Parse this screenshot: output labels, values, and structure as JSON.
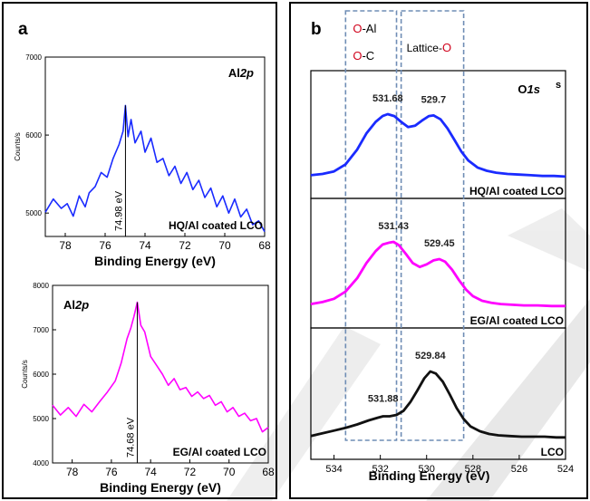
{
  "figure": {
    "panel_a_label": "a",
    "panel_b_label": "b"
  },
  "chart_data": [
    {
      "id": "a_top",
      "type": "line",
      "title": "Al2p",
      "title_parts": [
        "Al",
        "2p"
      ],
      "xlabel": "Binding Energy (eV)",
      "ylabel": "Counts/s",
      "xlim": [
        79,
        68
      ],
      "ylim": [
        4700,
        7000
      ],
      "xticks": [
        78,
        76,
        74,
        72,
        70,
        68
      ],
      "yticks": [
        5000,
        6000,
        7000
      ],
      "color": "#1a2bff",
      "peak_label": "74.98 eV",
      "peak_x": 74.98,
      "sample_label": "HQ/Al coated LCO",
      "series": [
        {
          "name": "HQ/Al coated LCO",
          "x": [
            79.0,
            78.6,
            78.2,
            77.9,
            77.6,
            77.3,
            77.0,
            76.8,
            76.5,
            76.2,
            75.9,
            75.6,
            75.3,
            75.1,
            74.98,
            74.85,
            74.7,
            74.5,
            74.2,
            74.0,
            73.7,
            73.4,
            73.1,
            72.8,
            72.5,
            72.2,
            71.9,
            71.6,
            71.3,
            71.0,
            70.7,
            70.4,
            70.1,
            69.8,
            69.5,
            69.2,
            68.9,
            68.6,
            68.3,
            68.0
          ],
          "values": [
            5010,
            5180,
            5060,
            5120,
            4960,
            5220,
            5080,
            5260,
            5340,
            5520,
            5460,
            5700,
            5880,
            6050,
            6380,
            5980,
            6200,
            5900,
            6050,
            5780,
            5960,
            5650,
            5700,
            5480,
            5600,
            5380,
            5520,
            5300,
            5420,
            5200,
            5320,
            5080,
            5220,
            5000,
            5180,
            4950,
            5050,
            4850,
            4900,
            4760
          ]
        }
      ]
    },
    {
      "id": "a_bottom",
      "type": "line",
      "title": "Al2p",
      "title_parts": [
        "Al",
        "2p"
      ],
      "xlabel": "Binding Energy (eV)",
      "ylabel": "Counts/s",
      "xlim": [
        79,
        68
      ],
      "ylim": [
        4000,
        8000
      ],
      "xticks": [
        78,
        76,
        74,
        72,
        70,
        68
      ],
      "yticks": [
        4000,
        5000,
        6000,
        7000,
        8000
      ],
      "color": "#ff00ff",
      "peak_label": "74.68 eV",
      "peak_x": 74.68,
      "sample_label": "EG/Al coated LCO",
      "series": [
        {
          "name": "EG/Al coated LCO",
          "x": [
            79.0,
            78.6,
            78.2,
            77.8,
            77.4,
            77.0,
            76.6,
            76.2,
            75.8,
            75.5,
            75.2,
            75.0,
            74.85,
            74.68,
            74.5,
            74.3,
            74.0,
            73.7,
            73.4,
            73.1,
            72.8,
            72.5,
            72.2,
            71.9,
            71.6,
            71.3,
            71.0,
            70.7,
            70.4,
            70.1,
            69.8,
            69.5,
            69.2,
            68.9,
            68.6,
            68.3,
            68.0
          ],
          "values": [
            5300,
            5080,
            5250,
            5050,
            5320,
            5150,
            5380,
            5600,
            5850,
            6250,
            6800,
            7050,
            7300,
            7620,
            7100,
            6950,
            6400,
            6200,
            6000,
            5750,
            5900,
            5650,
            5700,
            5500,
            5600,
            5450,
            5520,
            5300,
            5380,
            5150,
            5250,
            5050,
            5120,
            4950,
            5000,
            4700,
            4800
          ]
        }
      ]
    },
    {
      "id": "b",
      "type": "line",
      "title": "O1s",
      "title_parts": [
        "O",
        "1s"
      ],
      "corner_letter": "s",
      "xlabel": "Binding Energy (eV)",
      "xlim": [
        535,
        524
      ],
      "xticks": [
        534,
        532,
        530,
        528,
        526,
        524
      ],
      "box_left": {
        "lines": [
          [
            "O",
            "-Al"
          ],
          [
            "O",
            "-C"
          ]
        ],
        "range": [
          533.5,
          531.3
        ]
      },
      "box_right": {
        "lines": [
          [
            "Lattice-",
            "O"
          ]
        ],
        "range": [
          531.1,
          528.4
        ]
      },
      "highlight_color": "#d0021b",
      "series": [
        {
          "name": "HQ/Al coated LCO",
          "color": "#1a2bff",
          "peak_labels": [
            {
              "text": "531.68",
              "x": 531.68
            },
            {
              "text": "529.7",
              "x": 529.7
            }
          ],
          "x": [
            535.0,
            534.5,
            534.0,
            533.5,
            533.0,
            532.6,
            532.2,
            531.9,
            531.68,
            531.4,
            531.1,
            530.8,
            530.5,
            530.2,
            529.9,
            529.7,
            529.4,
            529.1,
            528.8,
            528.5,
            528.2,
            527.8,
            527.4,
            527.0,
            526.5,
            526.0,
            525.5,
            525.0,
            524.5,
            524.0
          ],
          "values": [
            0.05,
            0.07,
            0.11,
            0.22,
            0.45,
            0.7,
            0.88,
            0.97,
            1.0,
            0.97,
            0.88,
            0.8,
            0.82,
            0.9,
            0.97,
            0.98,
            0.92,
            0.78,
            0.6,
            0.42,
            0.28,
            0.17,
            0.12,
            0.09,
            0.07,
            0.06,
            0.05,
            0.04,
            0.04,
            0.03
          ]
        },
        {
          "name": "EG/Al coated LCO",
          "color": "#ff00ff",
          "peak_labels": [
            {
              "text": "531.43",
              "x": 531.43
            },
            {
              "text": "529.45",
              "x": 529.45
            }
          ],
          "x": [
            535.0,
            534.5,
            534.0,
            533.5,
            533.0,
            532.6,
            532.2,
            531.9,
            531.6,
            531.43,
            531.2,
            530.9,
            530.6,
            530.3,
            530.0,
            529.7,
            529.45,
            529.2,
            528.9,
            528.6,
            528.3,
            528.0,
            527.6,
            527.2,
            526.8,
            526.3,
            525.8,
            525.2,
            524.6,
            524.0
          ],
          "values": [
            0.06,
            0.09,
            0.14,
            0.25,
            0.45,
            0.68,
            0.86,
            0.96,
            0.99,
            1.0,
            0.95,
            0.82,
            0.68,
            0.62,
            0.66,
            0.72,
            0.74,
            0.7,
            0.58,
            0.42,
            0.28,
            0.18,
            0.11,
            0.08,
            0.06,
            0.05,
            0.04,
            0.04,
            0.03,
            0.03
          ]
        },
        {
          "name": "LCO",
          "color": "#111111",
          "peak_labels": [
            {
              "text": "531.88",
              "x": 531.88
            },
            {
              "text": "529.84",
              "x": 529.84
            }
          ],
          "x": [
            535.0,
            534.5,
            534.0,
            533.5,
            533.0,
            532.5,
            532.1,
            531.88,
            531.6,
            531.3,
            531.0,
            530.7,
            530.4,
            530.1,
            529.84,
            529.6,
            529.3,
            529.0,
            528.7,
            528.4,
            528.1,
            527.7,
            527.3,
            526.9,
            526.4,
            525.9,
            525.4,
            524.9,
            524.4,
            524.0
          ],
          "values": [
            0.05,
            0.09,
            0.13,
            0.17,
            0.22,
            0.28,
            0.32,
            0.34,
            0.34,
            0.36,
            0.42,
            0.55,
            0.72,
            0.9,
            1.0,
            0.97,
            0.85,
            0.66,
            0.46,
            0.3,
            0.19,
            0.12,
            0.08,
            0.06,
            0.05,
            0.04,
            0.04,
            0.04,
            0.03,
            0.03
          ]
        }
      ]
    }
  ]
}
